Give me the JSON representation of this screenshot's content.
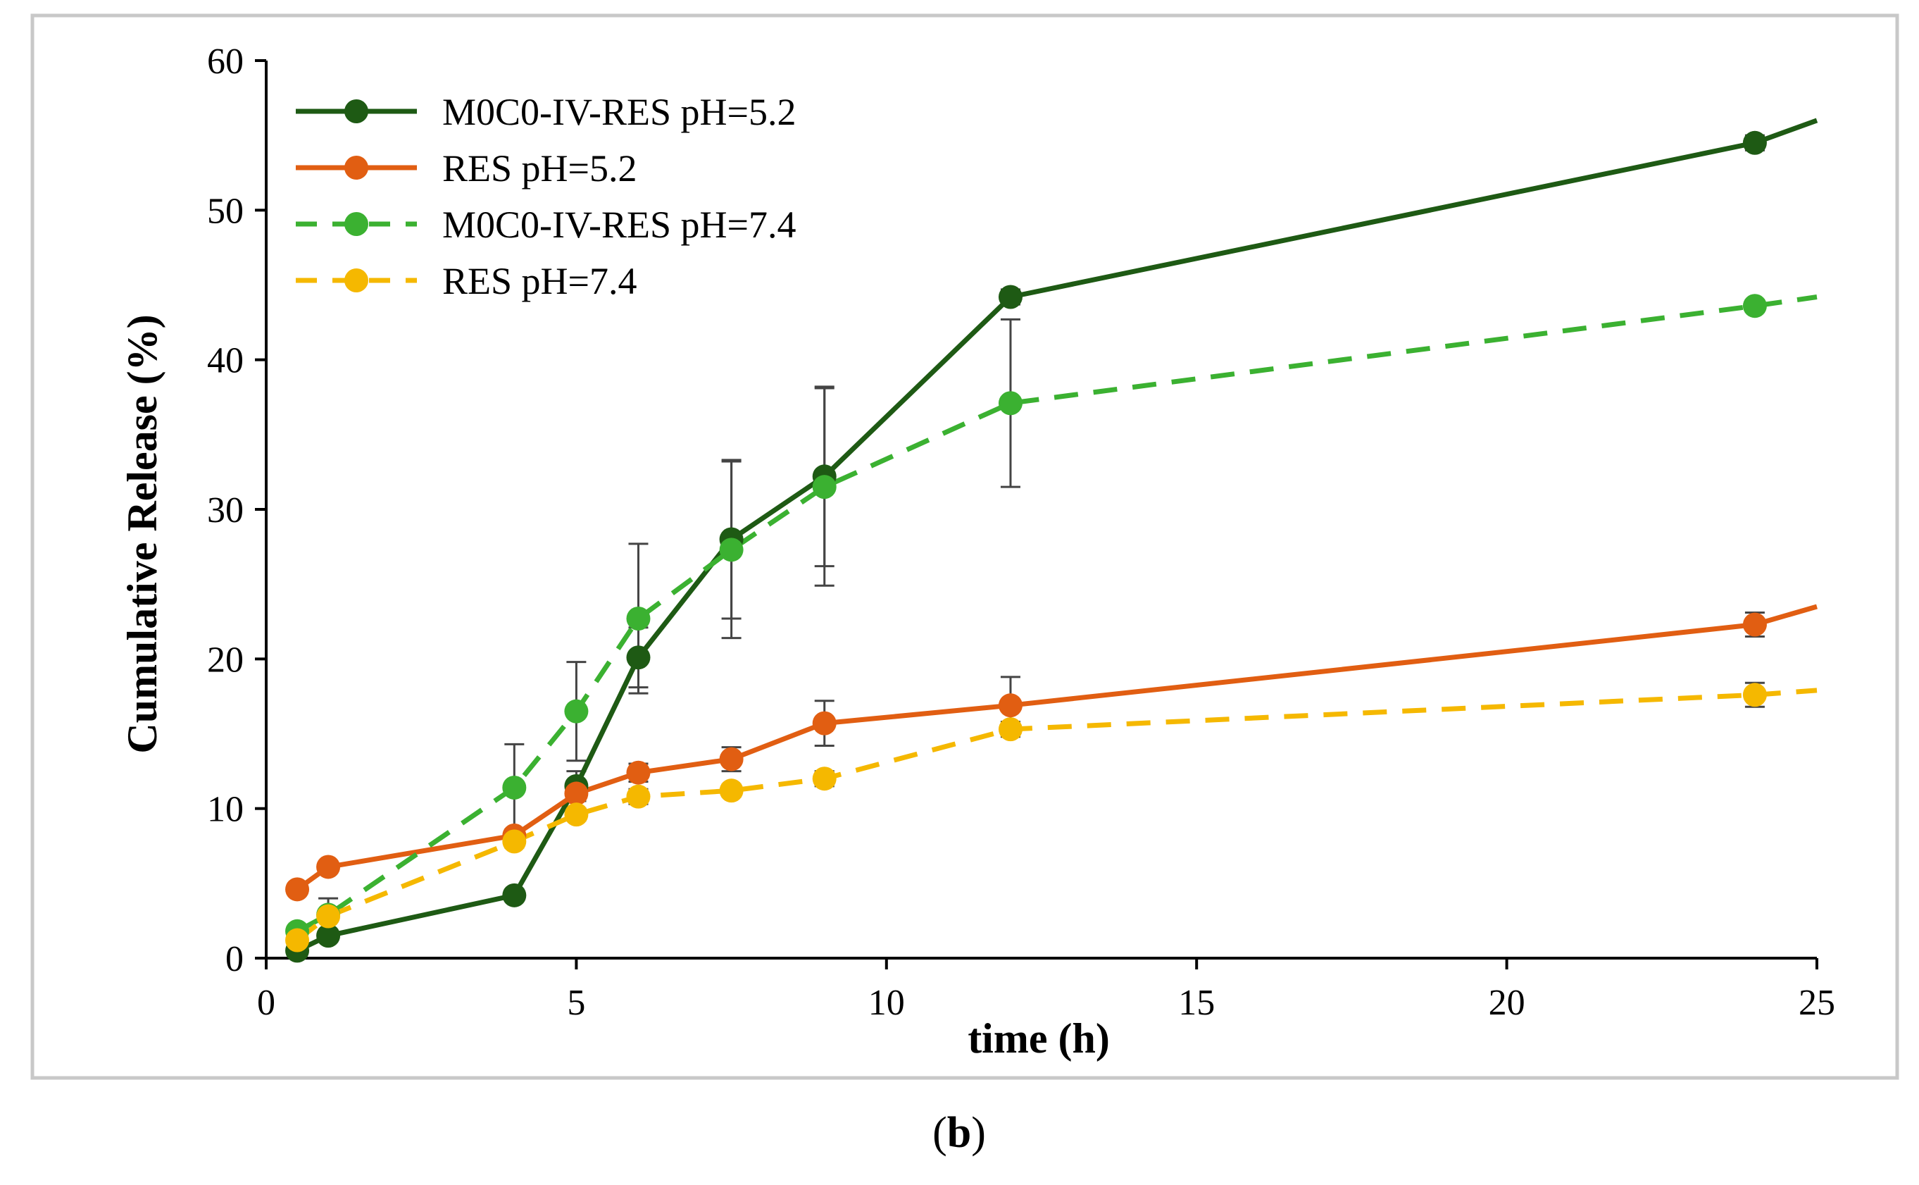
{
  "caption": "(b)",
  "chart_data": {
    "type": "line",
    "title": "",
    "xlabel": "time (h)",
    "ylabel": "Cumulative Release (%)",
    "xlim": [
      0,
      25
    ],
    "ylim": [
      0,
      60
    ],
    "xticks": [
      0,
      5,
      10,
      15,
      20,
      25
    ],
    "yticks": [
      0,
      10,
      20,
      30,
      40,
      50,
      60
    ],
    "grid": false,
    "legend_position": "top-left",
    "series": [
      {
        "name": "M0C0-IV-RES pH=5.2",
        "color": "#1e5a14",
        "dash": "solid",
        "x": [
          0.5,
          1,
          4,
          5,
          6,
          7.5,
          9,
          12,
          24
        ],
        "y": [
          0.5,
          1.5,
          4.2,
          11.5,
          20.1,
          28.0,
          32.2,
          44.2,
          54.5
        ],
        "err": [
          0.3,
          0.4,
          0.3,
          1.0,
          2.0,
          5.3,
          6.0,
          0.5,
          0.5
        ],
        "trend_end": [
          25,
          56.0
        ]
      },
      {
        "name": "RES pH=5.2",
        "color": "#e15e12",
        "dash": "solid",
        "x": [
          0.5,
          1,
          4,
          5,
          6,
          7.5,
          9,
          12,
          24
        ],
        "y": [
          4.6,
          6.1,
          8.2,
          11.0,
          12.4,
          13.3,
          15.7,
          16.9,
          22.3
        ],
        "err": [
          0.3,
          0.3,
          0.4,
          0.5,
          0.6,
          0.8,
          1.5,
          1.9,
          0.8
        ],
        "trend_end": [
          25,
          23.5
        ]
      },
      {
        "name": "M0C0-IV-RES pH=7.4",
        "color": "#3bb131",
        "dash": "dashed",
        "x": [
          0.5,
          1,
          4,
          5,
          6,
          7.5,
          9,
          12,
          24
        ],
        "y": [
          1.8,
          2.9,
          11.4,
          16.5,
          22.7,
          27.3,
          31.5,
          37.1,
          43.6
        ],
        "err": [
          0.3,
          1.1,
          2.9,
          3.3,
          5.0,
          5.9,
          6.6,
          5.6,
          0.4
        ],
        "trend_end": [
          25,
          44.2
        ]
      },
      {
        "name": "RES pH=7.4",
        "color": "#f5b800",
        "dash": "dashed",
        "x": [
          0.5,
          1,
          4,
          5,
          6,
          7.5,
          9,
          12,
          24
        ],
        "y": [
          1.2,
          2.8,
          7.8,
          9.6,
          10.8,
          11.2,
          12.0,
          15.3,
          17.6
        ],
        "err": [
          0.2,
          0.3,
          0.4,
          0.4,
          0.5,
          0.4,
          0.5,
          0.5,
          0.8
        ],
        "trend_end": [
          25,
          17.9
        ]
      }
    ]
  }
}
